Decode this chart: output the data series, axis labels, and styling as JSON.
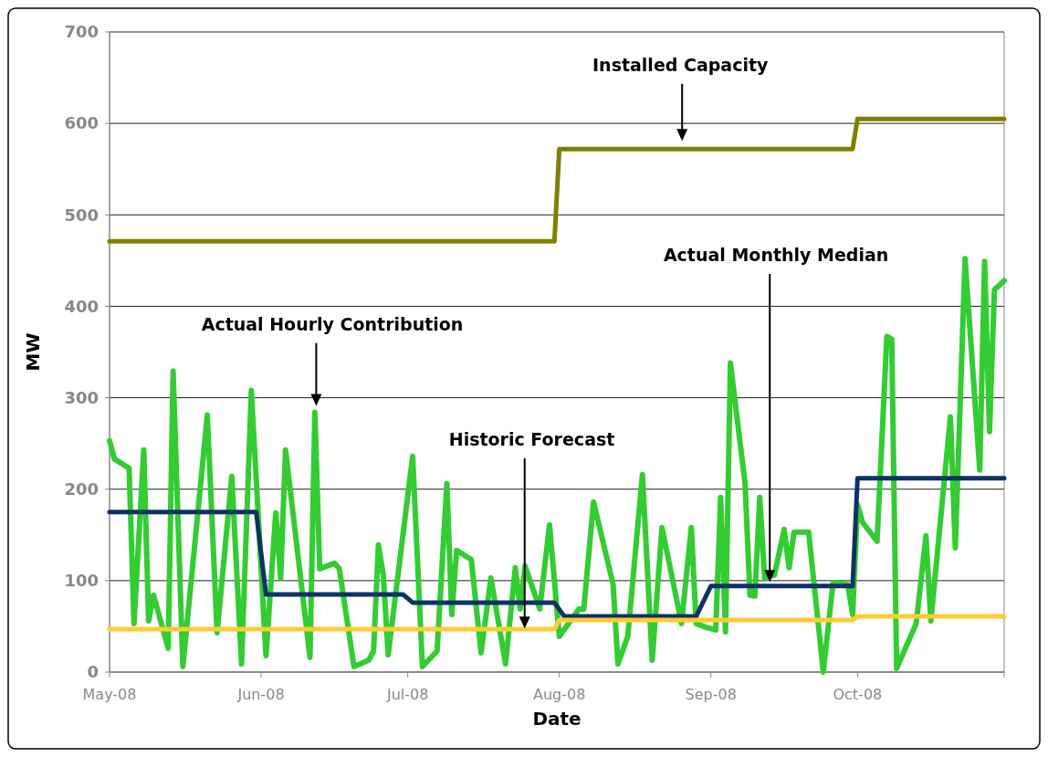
{
  "chart_data": {
    "type": "line",
    "xlabel": "Date",
    "ylabel": "MW",
    "xlim": [
      "2008-05-01",
      "2008-10-31"
    ],
    "ylim": [
      0,
      700
    ],
    "xticks": [
      {
        "value": "2008-05-01",
        "label": "May-08"
      },
      {
        "value": "2008-06-01",
        "label": "Jun-08"
      },
      {
        "value": "2008-07-01",
        "label": "Jul-08"
      },
      {
        "value": "2008-08-01",
        "label": "Aug-08"
      },
      {
        "value": "2008-09-01",
        "label": "Sep-08"
      },
      {
        "value": "2008-10-01",
        "label": "Oct-08"
      }
    ],
    "yticks": [
      0,
      100,
      200,
      300,
      400,
      500,
      600,
      700
    ],
    "grid": "y",
    "marker": "none",
    "line_style": "solid",
    "series": [
      {
        "name": "Actual Hourly Contribution",
        "color": "#33cc33",
        "x": [
          "2008-05-01",
          "2008-05-02",
          "2008-05-05",
          "2008-05-06",
          "2008-05-08",
          "2008-05-09",
          "2008-05-10",
          "2008-05-13",
          "2008-05-14",
          "2008-05-16",
          "2008-05-21",
          "2008-05-23",
          "2008-05-26",
          "2008-05-28",
          "2008-05-30",
          "2008-06-02",
          "2008-06-04",
          "2008-06-05",
          "2008-06-06",
          "2008-06-11",
          "2008-06-12",
          "2008-06-13",
          "2008-06-16",
          "2008-06-17",
          "2008-06-20",
          "2008-06-23",
          "2008-06-24",
          "2008-06-25",
          "2008-06-26",
          "2008-06-27",
          "2008-07-02",
          "2008-07-04",
          "2008-07-07",
          "2008-07-09",
          "2008-07-10",
          "2008-07-11",
          "2008-07-14",
          "2008-07-16",
          "2008-07-18",
          "2008-07-21",
          "2008-07-23",
          "2008-07-24",
          "2008-07-25",
          "2008-07-28",
          "2008-07-30",
          "2008-08-01",
          "2008-08-05",
          "2008-08-06",
          "2008-08-08",
          "2008-08-12",
          "2008-08-13",
          "2008-08-15",
          "2008-08-18",
          "2008-08-20",
          "2008-08-22",
          "2008-08-26",
          "2008-08-28",
          "2008-08-29",
          "2008-08-31",
          "2008-09-02",
          "2008-09-03",
          "2008-09-04",
          "2008-09-05",
          "2008-09-08",
          "2008-09-09",
          "2008-09-10",
          "2008-09-11",
          "2008-09-12",
          "2008-09-14",
          "2008-09-16",
          "2008-09-17",
          "2008-09-18",
          "2008-09-21",
          "2008-09-24",
          "2008-09-26",
          "2008-09-29",
          "2008-09-30",
          "2008-10-01",
          "2008-10-02",
          "2008-10-05",
          "2008-10-07",
          "2008-10-08",
          "2008-10-09",
          "2008-10-13",
          "2008-10-15",
          "2008-10-16",
          "2008-10-20",
          "2008-10-21",
          "2008-10-23",
          "2008-10-26",
          "2008-10-27",
          "2008-10-28",
          "2008-10-29",
          "2008-10-31"
        ],
        "values": [
          253,
          233,
          223,
          53,
          243,
          56,
          84,
          26,
          329,
          6,
          281,
          43,
          214,
          9,
          308,
          18,
          174,
          103,
          243,
          16,
          284,
          113,
          119,
          113,
          6,
          13,
          23,
          139,
          106,
          19,
          236,
          6,
          23,
          206,
          63,
          133,
          123,
          21,
          103,
          9,
          114,
          69,
          116,
          69,
          161,
          39,
          69,
          69,
          186,
          96,
          9,
          39,
          216,
          13,
          158,
          53,
          158,
          53,
          49,
          46,
          191,
          44,
          338,
          206,
          84,
          83,
          191,
          103,
          106,
          156,
          114,
          153,
          153,
          0,
          98,
          96,
          63,
          183,
          164,
          143,
          367,
          364,
          4,
          53,
          149,
          56,
          279,
          136,
          452,
          221,
          449,
          263,
          418,
          428
        ]
      },
      {
        "name": "Installed Capacity",
        "color": "#808000",
        "x": [
          "2008-05-01",
          "2008-07-31",
          "2008-08-01",
          "2008-09-30",
          "2008-10-01",
          "2008-10-31"
        ],
        "values": [
          471,
          471,
          572,
          572,
          605,
          605
        ]
      },
      {
        "name": "Actual Monthly Median",
        "color": "#0d3263",
        "x": [
          "2008-05-01",
          "2008-05-31",
          "2008-06-02",
          "2008-06-30",
          "2008-07-02",
          "2008-07-31",
          "2008-08-02",
          "2008-08-29",
          "2008-09-01",
          "2008-09-30",
          "2008-10-01",
          "2008-10-31"
        ],
        "values": [
          175,
          175,
          85,
          85,
          76,
          76,
          61,
          61,
          94,
          94,
          212,
          212
        ]
      },
      {
        "name": "Historic Forecast",
        "color": "#ffcc33",
        "x": [
          "2008-05-01",
          "2008-07-31",
          "2008-08-01",
          "2008-09-30",
          "2008-10-01",
          "2008-10-31"
        ],
        "values": [
          47,
          47,
          57,
          57,
          61,
          61
        ]
      }
    ]
  }
}
